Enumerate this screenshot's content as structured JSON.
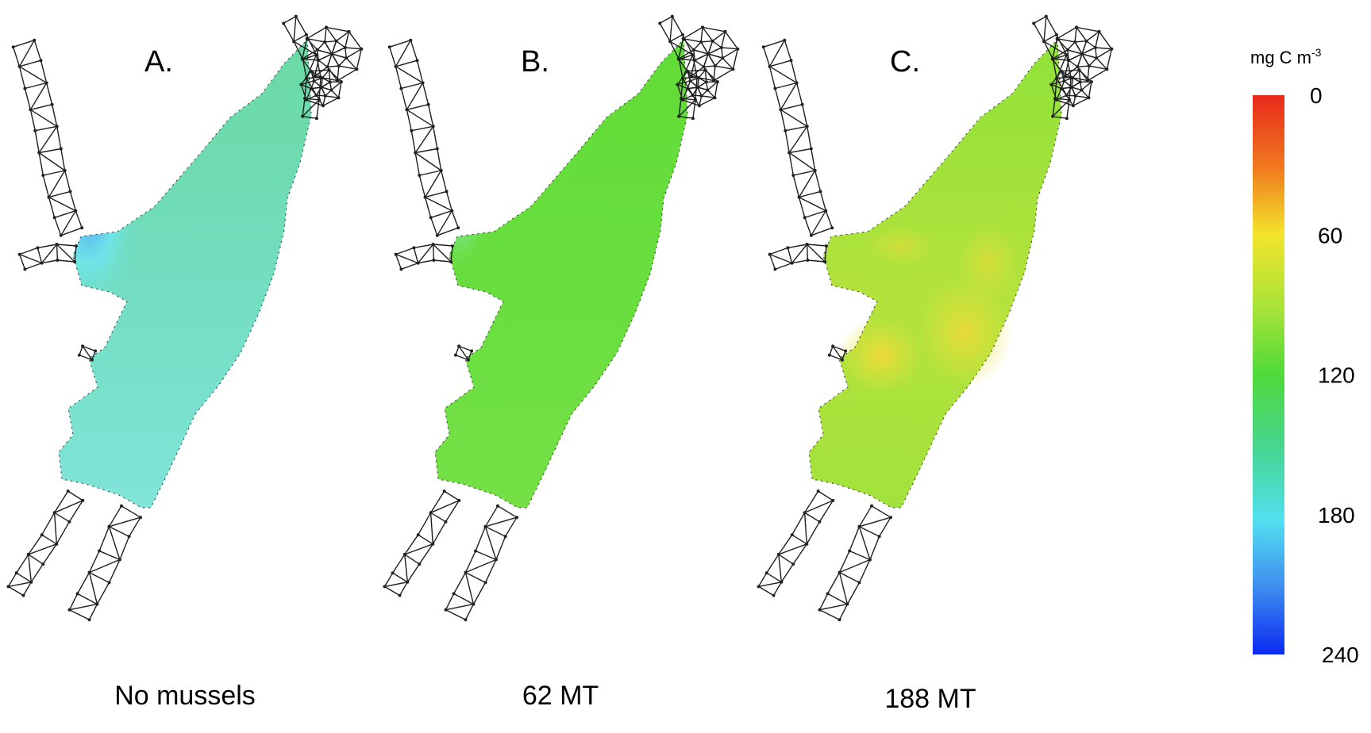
{
  "colors": {
    "mesh_stroke": "#1e1e1e",
    "scale": [
      "#e8291c",
      "#f3a21e",
      "#f2ea2c",
      "#b6e337",
      "#50d93a",
      "#4ad79a",
      "#58dff1",
      "#3e8df0",
      "#0b2af3"
    ]
  },
  "panels": [
    {
      "letter": "A.",
      "caption": "No mussels",
      "fill_colors": {
        "base": "#6fdcb8",
        "lower": "#7fe3cf",
        "inlet": "#58b8ee",
        "inlet_glow": "#6ee8f2"
      }
    },
    {
      "letter": "B.",
      "caption": "62 MT",
      "fill_colors": {
        "base": "#66de3e",
        "lower": "#74e040",
        "inlet": "#7fe8a0"
      }
    },
    {
      "letter": "C.",
      "caption": "188 MT",
      "fill_colors": {
        "base": "#99e23c",
        "lower": "#a9e13e",
        "hot": "#f2e13a"
      }
    }
  ],
  "colorbar": {
    "title_main": "mg C m",
    "title_exp": "-3",
    "ticks": [
      "0",
      "60",
      "120",
      "180",
      "240"
    ],
    "tick_values": [
      0,
      60,
      120,
      180,
      240
    ],
    "range": [
      0,
      240
    ],
    "direction": "0 at top, 240 at bottom"
  }
}
